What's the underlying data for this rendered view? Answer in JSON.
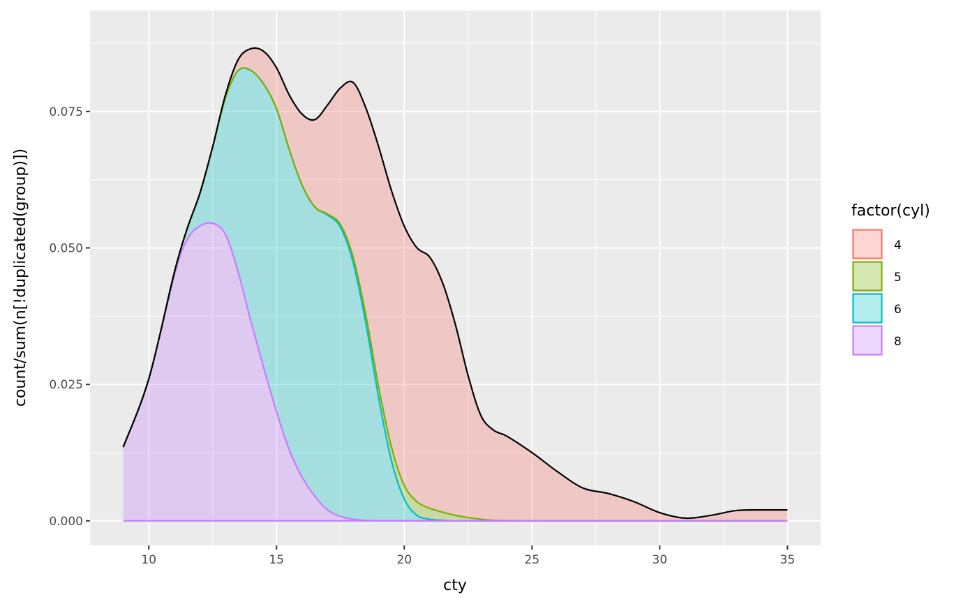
{
  "chart_data": {
    "type": "area",
    "stacked": true,
    "xlabel": "cty",
    "ylabel": "count/sum(n[!duplicated(group)])",
    "xlim": [
      7.7,
      36.3
    ],
    "ylim": [
      -0.0045,
      0.0935
    ],
    "x_ticks": [
      10,
      15,
      20,
      25,
      30,
      35
    ],
    "y_ticks": [
      0.0,
      0.025,
      0.05,
      0.075
    ],
    "x_tick_labels": [
      "10",
      "15",
      "20",
      "25",
      "30",
      "35"
    ],
    "y_tick_labels": [
      "0.000",
      "0.025",
      "0.050",
      "0.075"
    ],
    "grid": true,
    "legend": {
      "title": "factor(cyl)",
      "position": "right"
    },
    "x": [
      9,
      10,
      11,
      11.5,
      12,
      12.5,
      13,
      13.5,
      14,
      14.5,
      15,
      15.5,
      16,
      16.5,
      17,
      17.5,
      18,
      18.5,
      19,
      19.5,
      20,
      20.5,
      21,
      21.5,
      22,
      22.5,
      23,
      23.5,
      24,
      25,
      26,
      27,
      28,
      29,
      30,
      31,
      32,
      33,
      34,
      35
    ],
    "series": [
      {
        "name": "4",
        "color": "#F8766D",
        "values": [
          0,
          0,
          0,
          0,
          0,
          0,
          0.0005,
          0.002,
          0.004,
          0.006,
          0.0075,
          0.01,
          0.013,
          0.016,
          0.02,
          0.025,
          0.032,
          0.038,
          0.044,
          0.047,
          0.0475,
          0.0465,
          0.046,
          0.042,
          0.035,
          0.026,
          0.019,
          0.0165,
          0.0155,
          0.0125,
          0.009,
          0.006,
          0.005,
          0.0035,
          0.0015,
          0.0005,
          0.001,
          0.0019,
          0.002,
          0.002
        ]
      },
      {
        "name": "5",
        "color": "#7CAE00",
        "values": [
          0,
          0,
          0,
          0,
          0,
          0,
          0,
          0,
          0,
          0,
          0,
          0,
          0,
          0,
          0.0002,
          0.0005,
          0.001,
          0.0015,
          0.002,
          0.0025,
          0.0025,
          0.0025,
          0.002,
          0.0015,
          0.001,
          0.0006,
          0.0003,
          0.0001,
          5e-05,
          0,
          0,
          0,
          0,
          0,
          0,
          0,
          0,
          0,
          0,
          0
        ]
      },
      {
        "name": "6",
        "color": "#00BFC4",
        "values": [
          0,
          0,
          0.0005,
          0.002,
          0.006,
          0.014,
          0.025,
          0.037,
          0.046,
          0.052,
          0.0555,
          0.055,
          0.0535,
          0.053,
          0.054,
          0.053,
          0.047,
          0.036,
          0.0225,
          0.011,
          0.004,
          0.001,
          0.0003,
          0.0001,
          0,
          0,
          0,
          0,
          0,
          0,
          0,
          0,
          0,
          0,
          0,
          0,
          0,
          0,
          0,
          0
        ]
      },
      {
        "name": "8",
        "color": "#C77CFF",
        "values": [
          0.0135,
          0.026,
          0.045,
          0.0515,
          0.054,
          0.0545,
          0.0525,
          0.0455,
          0.0365,
          0.028,
          0.02,
          0.013,
          0.008,
          0.0045,
          0.002,
          0.0008,
          0.0003,
          0.0001,
          0,
          0,
          0,
          0,
          0,
          0,
          0,
          0,
          0,
          0,
          0,
          0,
          0,
          0,
          0,
          0,
          0,
          0,
          0,
          0,
          0,
          0
        ]
      }
    ]
  }
}
